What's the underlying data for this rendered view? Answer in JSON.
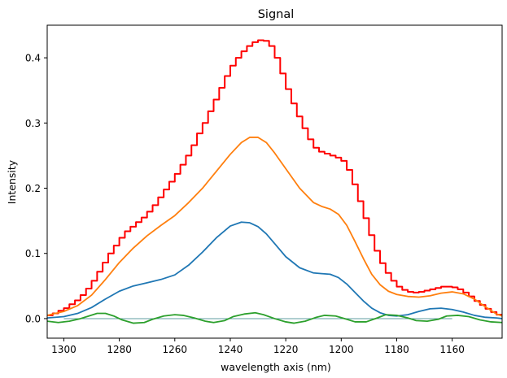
{
  "chart_data": {
    "type": "line",
    "title": "Signal",
    "xlabel": "wavelength axis (nm)",
    "ylabel": "Intensity",
    "xlim": [
      1306,
      1142
    ],
    "ylim": [
      -0.03,
      0.45
    ],
    "x_reversed": true,
    "grid": false,
    "legend": "none",
    "xticks": [
      1300,
      1280,
      1260,
      1240,
      1220,
      1200,
      1180,
      1160
    ],
    "yticks": [
      0.0,
      0.1,
      0.2,
      0.3,
      0.4
    ],
    "xtick_labels": [
      "1300",
      "1280",
      "1260",
      "1240",
      "1220",
      "1200",
      "1180",
      "1160"
    ],
    "ytick_labels": [
      "0.0",
      "0.1",
      "0.2",
      "0.3",
      "0.4"
    ],
    "baseline": {
      "y": 0.0,
      "x_range": [
        1300,
        1160
      ],
      "color": "#5f9ea0"
    },
    "series": [
      {
        "color": "#ff0000",
        "style": "step",
        "x": [
          1306,
          1304,
          1302,
          1300,
          1298,
          1296,
          1294,
          1292,
          1290,
          1288,
          1286,
          1284,
          1282,
          1280,
          1278,
          1276,
          1274,
          1272,
          1270,
          1268,
          1266,
          1264,
          1262,
          1260,
          1258,
          1256,
          1254,
          1252,
          1250,
          1248,
          1246,
          1244,
          1242,
          1240,
          1238,
          1236,
          1234,
          1232,
          1230,
          1228,
          1226,
          1224,
          1222,
          1220,
          1218,
          1216,
          1214,
          1212,
          1210,
          1208,
          1206,
          1204,
          1202,
          1200,
          1198,
          1196,
          1194,
          1192,
          1190,
          1188,
          1186,
          1184,
          1182,
          1180,
          1178,
          1176,
          1174,
          1172,
          1170,
          1168,
          1166,
          1164,
          1162,
          1160,
          1158,
          1156,
          1154,
          1152,
          1150,
          1148,
          1146,
          1144
        ],
        "y": [
          0.005,
          0.008,
          0.012,
          0.016,
          0.022,
          0.028,
          0.036,
          0.046,
          0.058,
          0.072,
          0.086,
          0.1,
          0.112,
          0.124,
          0.134,
          0.141,
          0.148,
          0.155,
          0.164,
          0.174,
          0.186,
          0.198,
          0.21,
          0.222,
          0.236,
          0.25,
          0.266,
          0.284,
          0.3,
          0.318,
          0.336,
          0.354,
          0.372,
          0.388,
          0.4,
          0.41,
          0.418,
          0.424,
          0.427,
          0.426,
          0.418,
          0.4,
          0.376,
          0.352,
          0.33,
          0.31,
          0.292,
          0.275,
          0.262,
          0.256,
          0.253,
          0.25,
          0.247,
          0.242,
          0.228,
          0.206,
          0.18,
          0.154,
          0.128,
          0.104,
          0.085,
          0.07,
          0.058,
          0.049,
          0.044,
          0.041,
          0.04,
          0.041,
          0.043,
          0.045,
          0.047,
          0.049,
          0.049,
          0.048,
          0.045,
          0.04,
          0.034,
          0.027,
          0.021,
          0.015,
          0.01,
          0.006
        ]
      },
      {
        "color": "#ff7f0e",
        "style": "line",
        "x": [
          1306,
          1300,
          1295,
          1290,
          1285,
          1280,
          1275,
          1270,
          1265,
          1260,
          1255,
          1250,
          1245,
          1240,
          1236,
          1233,
          1230,
          1227,
          1224,
          1220,
          1215,
          1210,
          1207,
          1204,
          1201,
          1198,
          1195,
          1192,
          1189,
          1186,
          1183,
          1180,
          1176,
          1172,
          1168,
          1164,
          1160,
          1156,
          1152,
          1148,
          1144,
          1142
        ],
        "y": [
          0.005,
          0.011,
          0.02,
          0.036,
          0.06,
          0.086,
          0.108,
          0.127,
          0.143,
          0.158,
          0.178,
          0.2,
          0.226,
          0.252,
          0.27,
          0.278,
          0.278,
          0.27,
          0.254,
          0.23,
          0.2,
          0.178,
          0.172,
          0.168,
          0.16,
          0.143,
          0.118,
          0.092,
          0.068,
          0.052,
          0.042,
          0.037,
          0.034,
          0.033,
          0.035,
          0.039,
          0.041,
          0.038,
          0.03,
          0.018,
          0.007,
          0.004
        ]
      },
      {
        "color": "#1f77b4",
        "style": "line",
        "x": [
          1306,
          1300,
          1295,
          1290,
          1285,
          1280,
          1275,
          1270,
          1265,
          1260,
          1255,
          1250,
          1245,
          1240,
          1236,
          1233,
          1230,
          1227,
          1224,
          1220,
          1215,
          1210,
          1207,
          1204,
          1201,
          1198,
          1195,
          1192,
          1189,
          1186,
          1183,
          1180,
          1176,
          1172,
          1168,
          1164,
          1160,
          1156,
          1152,
          1148,
          1144,
          1142
        ],
        "y": [
          0.001,
          0.003,
          0.008,
          0.017,
          0.03,
          0.042,
          0.05,
          0.055,
          0.06,
          0.067,
          0.082,
          0.102,
          0.124,
          0.142,
          0.148,
          0.147,
          0.141,
          0.13,
          0.115,
          0.095,
          0.078,
          0.07,
          0.069,
          0.068,
          0.063,
          0.053,
          0.04,
          0.027,
          0.016,
          0.009,
          0.005,
          0.004,
          0.006,
          0.011,
          0.015,
          0.016,
          0.014,
          0.01,
          0.005,
          0.002,
          0.001,
          0.0
        ]
      },
      {
        "color": "#2ca02c",
        "style": "line",
        "x": [
          1306,
          1302,
          1298,
          1294,
          1291,
          1288,
          1285,
          1282,
          1279,
          1275,
          1271,
          1268,
          1264,
          1260,
          1257,
          1253,
          1249,
          1246,
          1242,
          1239,
          1235,
          1231,
          1228,
          1224,
          1220,
          1217,
          1213,
          1209,
          1206,
          1202,
          1198,
          1195,
          1191,
          1187,
          1184,
          1180,
          1176,
          1173,
          1169,
          1165,
          1162,
          1158,
          1154,
          1150,
          1146,
          1142
        ],
        "y": [
          -0.004,
          -0.006,
          -0.004,
          0.0,
          0.004,
          0.008,
          0.008,
          0.004,
          -0.002,
          -0.007,
          -0.006,
          -0.001,
          0.004,
          0.006,
          0.005,
          0.001,
          -0.004,
          -0.006,
          -0.003,
          0.003,
          0.007,
          0.009,
          0.006,
          0.0,
          -0.005,
          -0.007,
          -0.004,
          0.002,
          0.005,
          0.004,
          -0.001,
          -0.005,
          -0.005,
          0.001,
          0.006,
          0.005,
          0.001,
          -0.003,
          -0.004,
          -0.001,
          0.004,
          0.005,
          0.003,
          -0.002,
          -0.005,
          -0.006
        ]
      }
    ]
  }
}
